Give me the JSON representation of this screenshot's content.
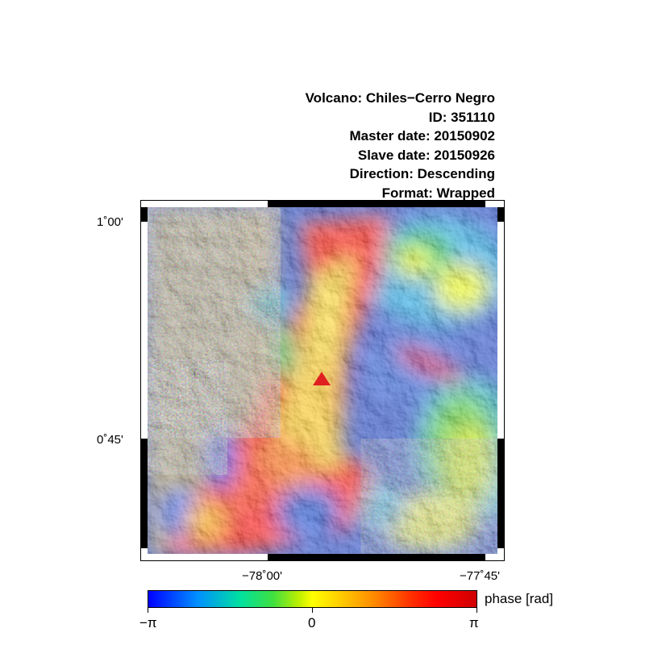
{
  "header": {
    "volcano": "Volcano: Chiles−Cerro Negro",
    "id": "ID: 351110",
    "master_date": "Master date: 20150902",
    "slave_date": "Slave date: 20150926",
    "direction": "Direction: Descending",
    "format": "Format: Wrapped"
  },
  "map": {
    "lat_labels": [
      "1˚00'",
      "0˚45'"
    ],
    "lon_labels": [
      "−78˚00'",
      "−77˚45'"
    ],
    "volcano_marker": {
      "color": "#e02020",
      "icon": "triangle-icon"
    }
  },
  "colorbar": {
    "label": "phase [rad]",
    "tick_min": "−π",
    "tick_mid": "0",
    "tick_max": "π",
    "colors": [
      "#0000ff",
      "#00e0a0",
      "#ffff00",
      "#ff9000",
      "#ff0000"
    ]
  }
}
